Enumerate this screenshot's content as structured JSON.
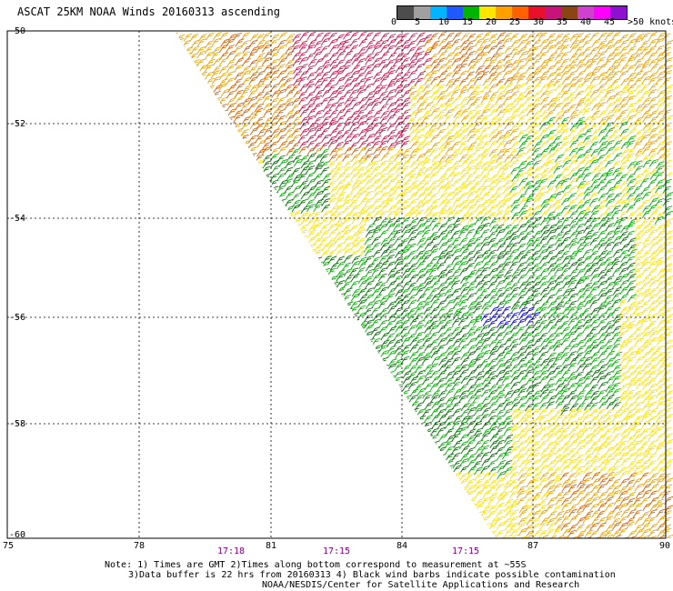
{
  "title": "ASCAT 25KM NOAA Winds 20160313 ascending",
  "legend": {
    "labels": [
      "0",
      "5",
      "10",
      "15",
      "20",
      "25",
      "30",
      "35",
      "40",
      "45",
      ">50 knots"
    ],
    "colors": [
      "#4d4d4d",
      "#a0a0a0",
      "#00b4ff",
      "#1e5aff",
      "#00b400",
      "#ffe600",
      "#ffa000",
      "#ff6000",
      "#e8102a",
      "#c8147a",
      "#8b4513",
      "#d040d0",
      "#ff00ff",
      "#9010d0"
    ]
  },
  "map": {
    "lat_labels": [
      "-50",
      "-52",
      "-54",
      "-56",
      "-58",
      "-60"
    ],
    "lon_labels": [
      "75",
      "78",
      "81",
      "84",
      "87",
      "90"
    ],
    "time_labels": [
      "17:18",
      "17:15",
      "17:15"
    ],
    "time_color": "#800080",
    "wind_colors": {
      "yellow": "#ffe000",
      "orange": "#f0a000",
      "dark_orange": "#d86000",
      "red": "#d0104a",
      "green": "#00b000",
      "dark_green": "#007000",
      "blue": "#0000e0"
    }
  },
  "note": {
    "line1": "Note: 1) Times are GMT 2)Times along bottom correspond to measurement at ~55S",
    "line2": "3)Data buffer is 22 hrs from 20160313 4) Black wind barbs indicate possible contamination",
    "line3": "NOAA/NESDIS/Center for Satellite Applications and Research"
  }
}
